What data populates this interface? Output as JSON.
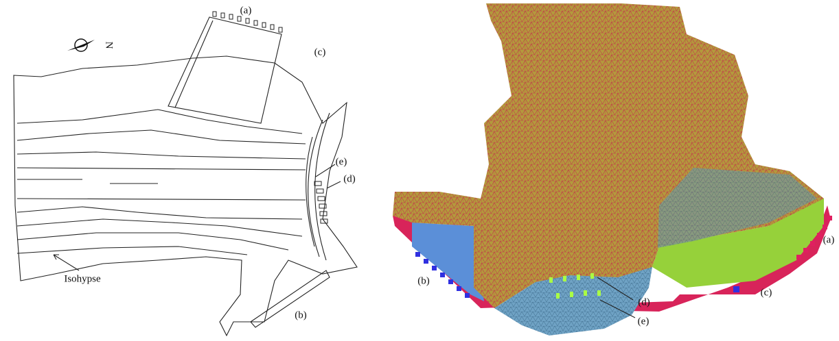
{
  "left_panel": {
    "compass": "N",
    "labels": [
      "(a)",
      "(c)",
      "(e)",
      "(d)",
      "Isohypse",
      "(b)"
    ]
  },
  "right_panel": {
    "labels": [
      "(a)",
      "(b)",
      "(c)",
      "(d)",
      "(e)"
    ]
  }
}
